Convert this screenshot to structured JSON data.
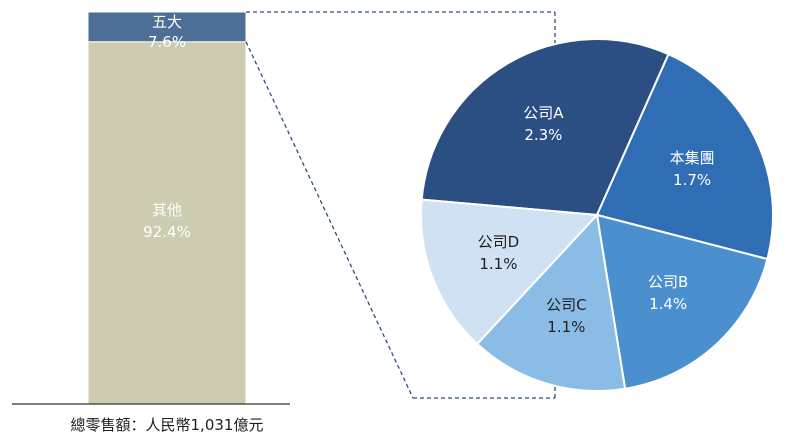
{
  "chart_data": [
    {
      "type": "bar",
      "stacked": true,
      "series": [
        {
          "name": "其他",
          "values": [
            92.4
          ],
          "value_label": "92.4%"
        },
        {
          "name": "五大",
          "values": [
            7.6
          ],
          "value_label": "7.6%"
        }
      ],
      "xlabel": "總零售額：人民幣1,031億元",
      "ylim": [
        0,
        100
      ],
      "colors": {
        "其他": "#cdccb1",
        "五大": "#4d6e96"
      }
    },
    {
      "type": "pie",
      "slices": [
        {
          "label": "公司A",
          "value": 2.3,
          "value_label": "2.3%",
          "color": "#2b4f82"
        },
        {
          "label": "本集團",
          "value": 1.7,
          "value_label": "1.7%",
          "color": "#2f6db5"
        },
        {
          "label": "公司B",
          "value": 1.4,
          "value_label": "1.4%",
          "color": "#4b8fcf"
        },
        {
          "label": "公司C",
          "value": 1.1,
          "value_label": "1.1%",
          "color": "#8bbce6"
        },
        {
          "label": "公司D",
          "value": 1.1,
          "value_label": "1.1%",
          "color": "#cfe1f3"
        }
      ]
    }
  ],
  "colors": {
    "connector": "#2f4f7a",
    "axis": "#333333",
    "bar_outline": "#ffffff"
  }
}
